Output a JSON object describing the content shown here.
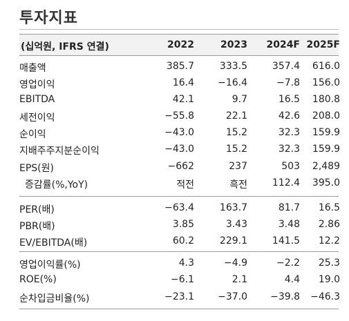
{
  "title": "투자지표",
  "header": [
    "(십억원, IFRS 연결)",
    "2022",
    "2023",
    "2024F",
    "2025F"
  ],
  "rows": [
    {
      "label": "매출액",
      "v": [
        "385.7",
        "333.5",
        "357.4",
        "616.0"
      ]
    },
    {
      "label": "영업이익",
      "v": [
        "16.4",
        "−16.4",
        "−7.8",
        "156.0"
      ]
    },
    {
      "label": "EBITDA",
      "v": [
        "42.1",
        "9.7",
        "16.5",
        "180.8"
      ]
    },
    {
      "label": "세전이익",
      "v": [
        "−55.8",
        "22.1",
        "42.6",
        "208.0"
      ]
    },
    {
      "label": "순이익",
      "v": [
        "−43.0",
        "15.2",
        "32.3",
        "159.9"
      ]
    },
    {
      "label": "지배주주지분순이익",
      "v": [
        "−43.0",
        "15.2",
        "32.3",
        "159.9"
      ]
    },
    {
      "label": "EPS(원)",
      "v": [
        "−662",
        "237",
        "503",
        "2,489"
      ]
    },
    {
      "label": "증감률(%,YoY)",
      "v": [
        "적전",
        "흑전",
        "112.4",
        "395.0"
      ]
    },
    {
      "label": "PER(배)",
      "v": [
        "−63.4",
        "163.7",
        "81.7",
        "16.5"
      ]
    },
    {
      "label": "PBR(배)",
      "v": [
        "3.85",
        "3.43",
        "3.48",
        "2.86"
      ]
    },
    {
      "label": "EV/EBITDA(배)",
      "v": [
        "60.2",
        "229.1",
        "141.5",
        "12.2"
      ]
    },
    {
      "label": "영업이익률(%)",
      "v": [
        "4.3",
        "−4.9",
        "−2.2",
        "25.3"
      ]
    },
    {
      "label": "ROE(%)",
      "v": [
        "−6.1",
        "2.1",
        "4.4",
        "19.0"
      ]
    },
    {
      "label": "순차입금비율(%)",
      "v": [
        "−23.1",
        "−37.0",
        "−39.8",
        "−46.3"
      ]
    }
  ]
}
